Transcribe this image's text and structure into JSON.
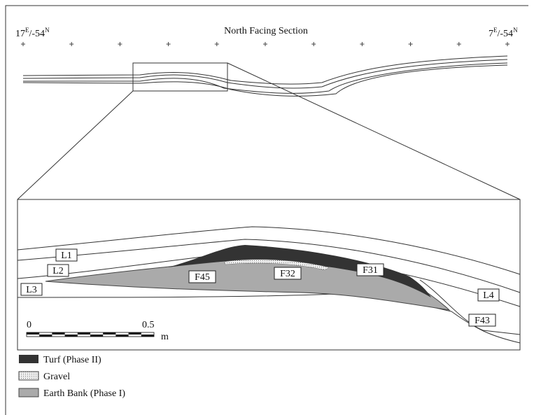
{
  "header": {
    "title": "North Facing Section",
    "left_coord": {
      "main": "17",
      "sup_e": "E",
      "mid": "/-54",
      "sup_n": "N"
    },
    "right_coord": {
      "main": "7",
      "sup_e": "E",
      "mid": "/-54",
      "sup_n": "N"
    }
  },
  "inset": {
    "labels": [
      "L1",
      "L2",
      "L3",
      "L4",
      "F45",
      "F32",
      "F31",
      "F43"
    ],
    "scale": {
      "start": "0",
      "mid": "0.5",
      "unit": "m"
    }
  },
  "legend": [
    "Turf (Phase II)",
    "Gravel",
    "Earth Bank (Phase I)"
  ]
}
